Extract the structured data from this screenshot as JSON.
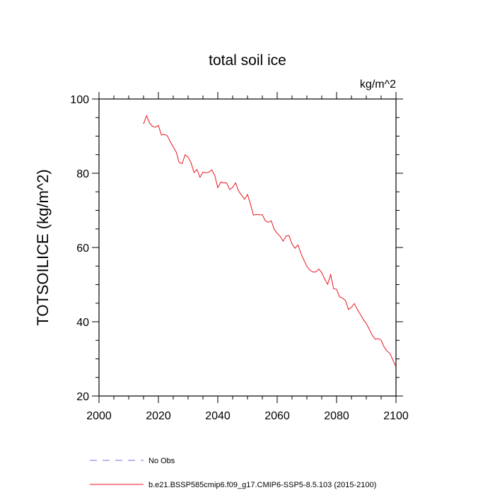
{
  "chart_data": {
    "type": "line",
    "title": "total soil ice",
    "units": "kg/m^2",
    "ylabel": "TOTSOILICE  (kg/m^2)",
    "xlabel": "",
    "xlim": [
      2000,
      2100
    ],
    "ylim": [
      20,
      100
    ],
    "xticks": [
      2000,
      2020,
      2040,
      2060,
      2080,
      2100
    ],
    "yticks": [
      20,
      40,
      60,
      80,
      100
    ],
    "grid": false,
    "legend_position": "bottom",
    "series": [
      {
        "name": "No Obs",
        "style": "dashed",
        "color": "#6f6fe0",
        "x": [],
        "y": []
      },
      {
        "name": "b.e21.BSSP585cmip6.f09_g17.CMIP6-SSP5-8.5.103 (2015-2100)",
        "style": "solid",
        "color": "#e8141c",
        "x": [
          2015,
          2016,
          2017,
          2018,
          2019,
          2020,
          2021,
          2022,
          2023,
          2024,
          2025,
          2026,
          2027,
          2028,
          2029,
          2030,
          2031,
          2032,
          2033,
          2034,
          2035,
          2036,
          2037,
          2038,
          2039,
          2040,
          2041,
          2042,
          2043,
          2044,
          2045,
          2046,
          2047,
          2048,
          2049,
          2050,
          2051,
          2052,
          2053,
          2054,
          2055,
          2056,
          2057,
          2058,
          2059,
          2060,
          2061,
          2062,
          2063,
          2064,
          2065,
          2066,
          2067,
          2068,
          2069,
          2070,
          2071,
          2072,
          2073,
          2074,
          2075,
          2076,
          2077,
          2078,
          2079,
          2080,
          2081,
          2082,
          2083,
          2084,
          2085,
          2086,
          2087,
          2088,
          2089,
          2090,
          2091,
          2092,
          2093,
          2094,
          2095,
          2096,
          2097,
          2098,
          2099,
          2100
        ],
        "y": [
          93.3,
          95.5,
          93.6,
          92.6,
          92.4,
          92.9,
          90.3,
          90.5,
          90.1,
          88.5,
          87.1,
          85.7,
          82.9,
          82.6,
          85.0,
          84.3,
          82.8,
          80.2,
          81.0,
          78.9,
          80.3,
          80.1,
          80.3,
          80.9,
          79.3,
          76.1,
          77.6,
          77.4,
          77.4,
          75.6,
          76.2,
          77.4,
          75.2,
          74.1,
          73.0,
          74.3,
          71.7,
          68.7,
          68.9,
          68.8,
          68.8,
          67.2,
          66.8,
          67.2,
          64.9,
          63.8,
          63.0,
          61.7,
          63.1,
          63.2,
          60.9,
          59.8,
          60.7,
          58.4,
          56.6,
          54.9,
          53.9,
          53.4,
          53.4,
          54.2,
          53.2,
          51.5,
          50.1,
          52.7,
          48.9,
          48.7,
          46.7,
          46.4,
          45.7,
          43.3,
          43.9,
          44.9,
          43.3,
          42.0,
          40.6,
          39.5,
          38.0,
          36.4,
          35.3,
          35.5,
          35.0,
          33.2,
          32.1,
          31.4,
          29.6,
          27.8
        ]
      }
    ]
  }
}
